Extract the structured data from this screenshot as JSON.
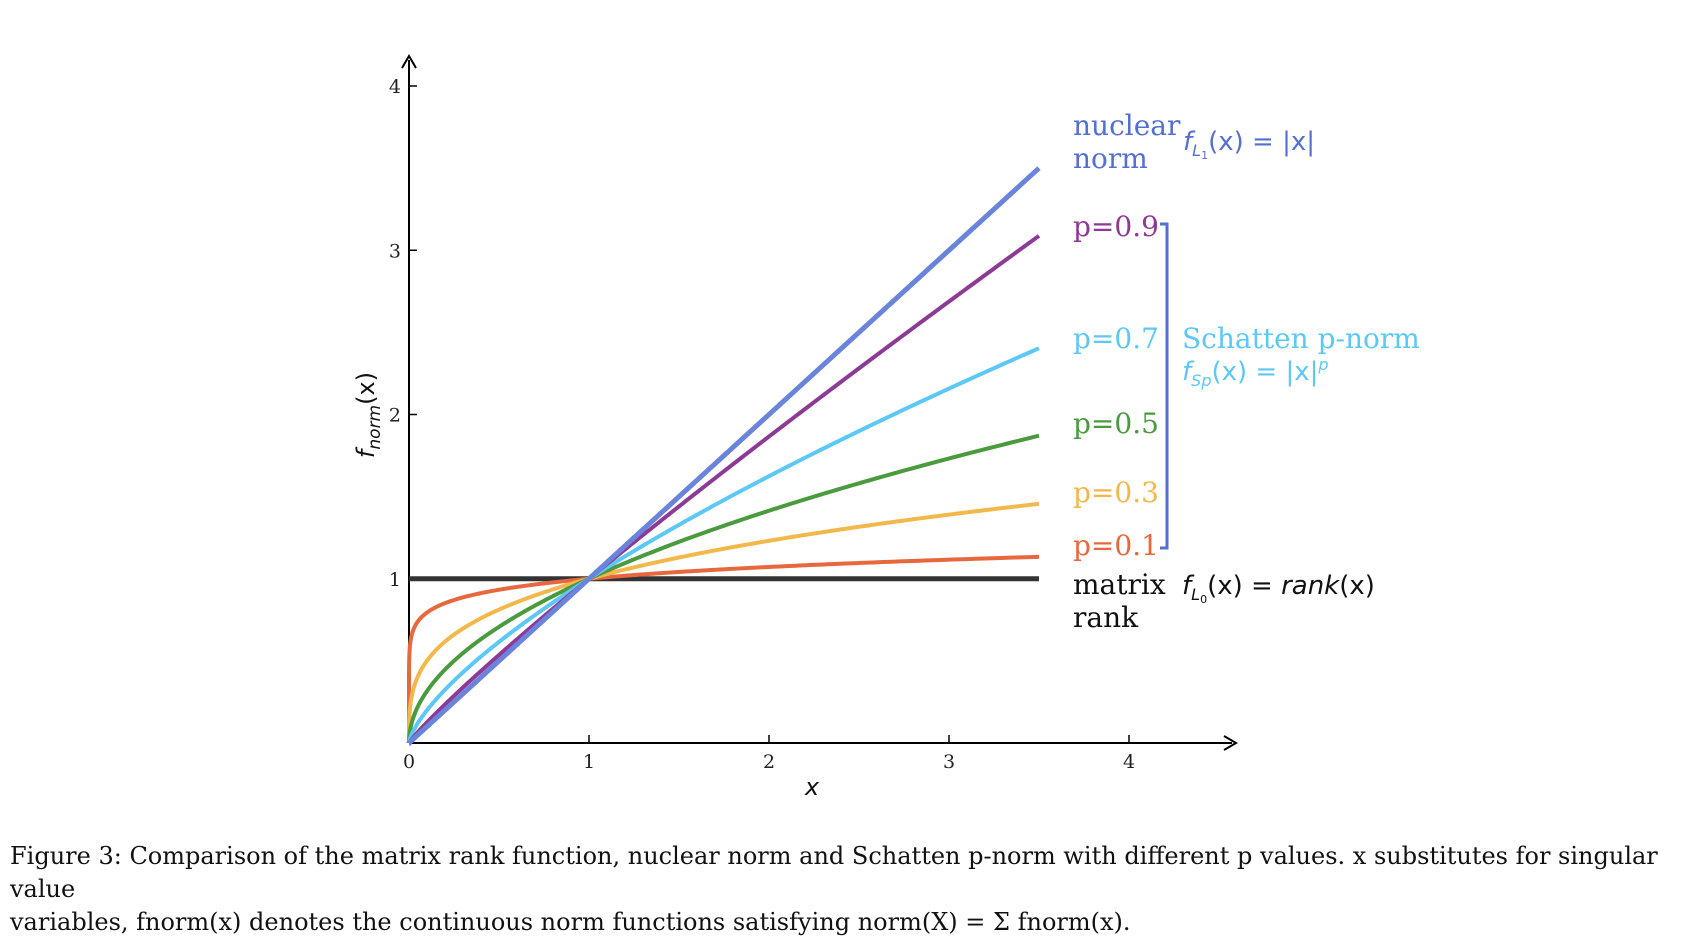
{
  "chart_data": {
    "type": "line",
    "xlabel": "x",
    "ylabel": "f",
    "ylabel_sub": "norm",
    "ylabel_arg": "(x)",
    "xlim": [
      0,
      4
    ],
    "ylim": [
      0,
      4
    ],
    "xticks": [
      0,
      1,
      2,
      3,
      4
    ],
    "yticks": [
      1,
      2,
      3,
      4
    ],
    "x_range_plotted": [
      0,
      3.5
    ],
    "grid": false,
    "series": [
      {
        "name": "matrix rank",
        "p": 0,
        "color": "#333333",
        "width": 5
      },
      {
        "name": "p=0.1",
        "p": 0.1,
        "color": "#E8683E",
        "width": 4
      },
      {
        "name": "p=0.3",
        "p": 0.3,
        "color": "#F3B84B",
        "width": 4
      },
      {
        "name": "p=0.5",
        "p": 0.5,
        "color": "#4A9A3E",
        "width": 4
      },
      {
        "name": "p=0.7",
        "p": 0.7,
        "color": "#5BC8F5",
        "width": 4
      },
      {
        "name": "p=0.9",
        "p": 0.9,
        "color": "#8C3A96",
        "width": 4
      },
      {
        "name": "nuclear norm",
        "p": 1,
        "color": "#6A84DC",
        "width": 5
      }
    ],
    "labels": {
      "nuclear_1": "nuclear",
      "nuclear_2": "norm",
      "nuclear_formula_f": "f",
      "nuclear_formula_sub": "L",
      "nuclear_formula_subsub": "1",
      "nuclear_formula_rest": "(x) = |x|",
      "p09": "p=0.9",
      "p07": "p=0.7",
      "p05": "p=0.5",
      "p03": "p=0.3",
      "p01": "p=0.1",
      "schatten_title": "Schatten p-norm",
      "schatten_f": "f",
      "schatten_sub": "Sp",
      "schatten_rest": "(x) = |x|",
      "schatten_sup": "p",
      "rank_1": "matrix",
      "rank_2": "rank",
      "rank_formula_f": "f",
      "rank_formula_sub": "L",
      "rank_formula_subsub": "0",
      "rank_formula_rest": "(x) = ",
      "rank_formula_rank": "rank",
      "rank_formula_end": "(x)"
    },
    "colors": {
      "nuclear_label": "#5470CF",
      "p09_label": "#8C3A96",
      "p07_label": "#5BC8F5",
      "p05_label": "#4A9A3E",
      "p03_label": "#F3B84B",
      "p01_label": "#E8683E",
      "schatten_label": "#5BC8F5",
      "bracket": "#5470CF",
      "rank_label": "#111111"
    }
  },
  "caption": {
    "line1": "Figure 3: Comparison of the matrix rank function, nuclear norm and Schatten p-norm with different p values. x substitutes for singular value",
    "line2": "variables, fnorm(x) denotes the continuous norm functions satisfying norm(X) = Σ fnorm(x)."
  }
}
